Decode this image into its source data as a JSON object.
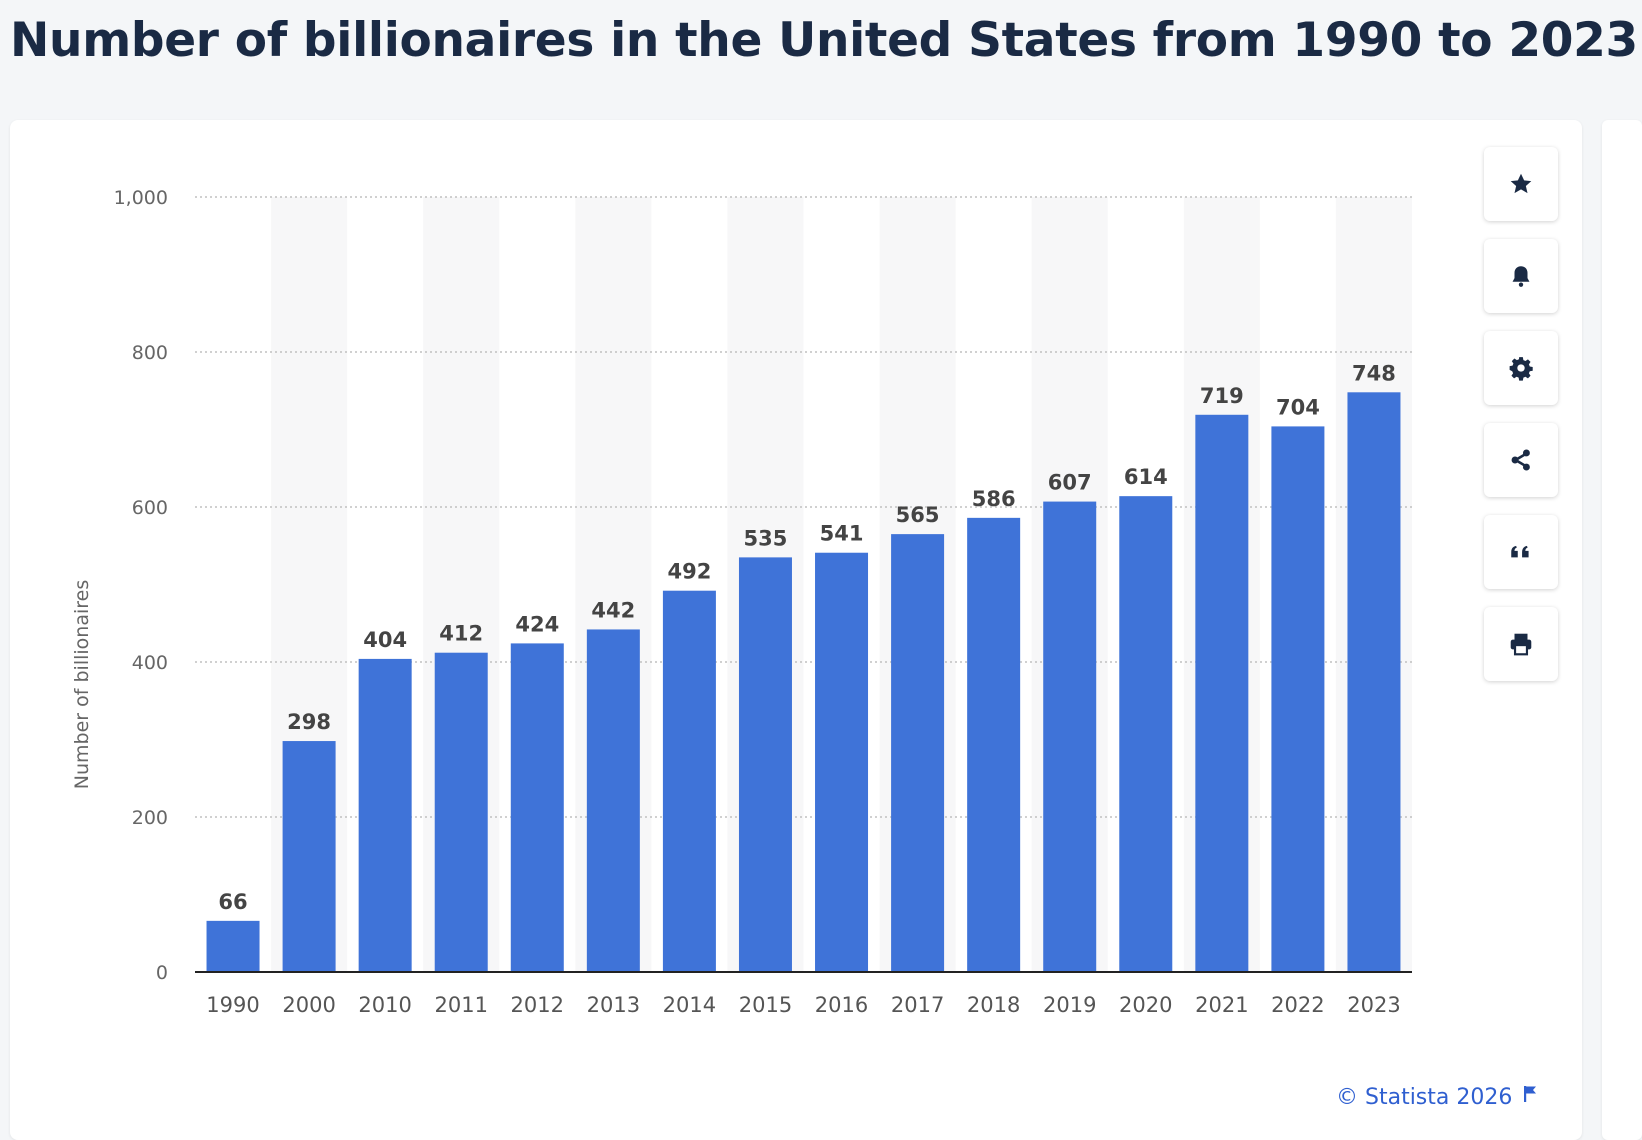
{
  "page": {
    "title": "Number of billionaires in the United States from 1990 to 2023"
  },
  "toolbar": {
    "buttons": [
      {
        "name": "favorite-button",
        "icon": "star-icon"
      },
      {
        "name": "notification-button",
        "icon": "bell-icon"
      },
      {
        "name": "settings-button",
        "icon": "gear-icon"
      },
      {
        "name": "share-button",
        "icon": "share-icon"
      },
      {
        "name": "cite-button",
        "icon": "quote-icon"
      },
      {
        "name": "print-button",
        "icon": "printer-icon"
      }
    ]
  },
  "credit": {
    "text": "© Statista 2026",
    "icon": "flag-icon",
    "color": "#2f5fd0"
  },
  "chart_data": {
    "type": "bar",
    "title": "Number of billionaires in the United States from 1990 to 2023",
    "xlabel": "",
    "ylabel": "Number of billionaires",
    "categories": [
      "1990",
      "2000",
      "2010",
      "2011",
      "2012",
      "2013",
      "2014",
      "2015",
      "2016",
      "2017",
      "2018",
      "2019",
      "2020",
      "2021",
      "2022",
      "2023"
    ],
    "values": [
      66,
      298,
      404,
      412,
      424,
      442,
      492,
      535,
      541,
      565,
      586,
      607,
      614,
      719,
      704,
      748
    ],
    "yticks": [
      "0",
      "200",
      "400",
      "600",
      "800",
      "1,000"
    ],
    "ylim": [
      0,
      1000
    ],
    "grid": true,
    "data_labels": true,
    "bar_color": "#3f73d8",
    "label_color": "#444444"
  }
}
